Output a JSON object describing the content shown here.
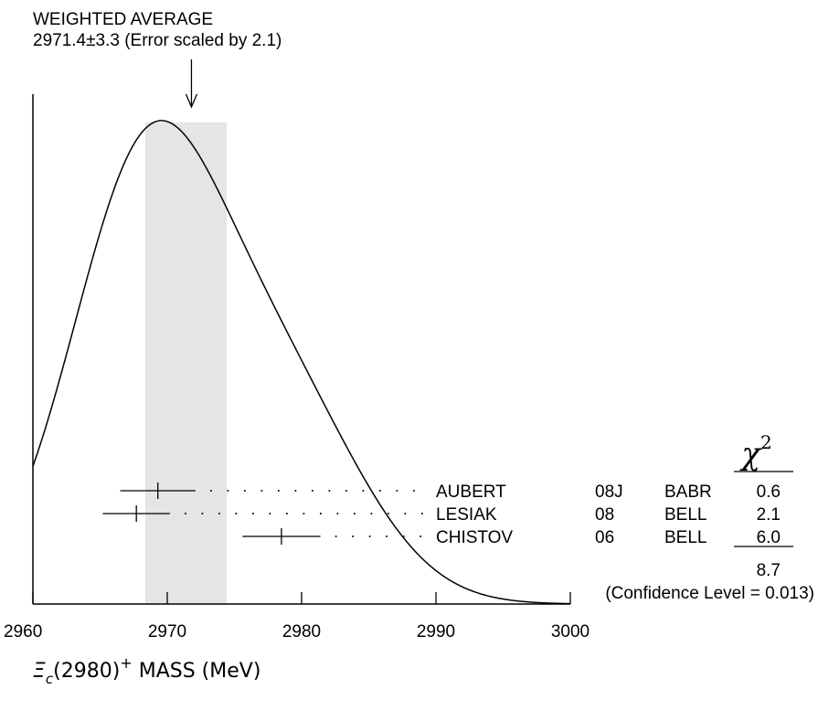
{
  "chart_data": {
    "type": "ideogram",
    "title": "WEIGHTED AVERAGE",
    "subtitle": "2971.4±3.3 (Error scaled by 2.1)",
    "xlabel": {
      "symbol": "Ξ",
      "subscript": "c",
      "mid": "(2980)",
      "superscript": "+",
      "rest": " MASS (MeV)"
    },
    "xlim": [
      2960,
      3000
    ],
    "ticks": [
      2960,
      2970,
      2980,
      2990,
      3000
    ],
    "weighted_average": {
      "value": 2971.4,
      "error": 3.3,
      "scale_factor": 2.1
    },
    "chi2_header": "χ",
    "chi2_header_sup": "2",
    "measurements": [
      {
        "author": "AUBERT",
        "year": "08J",
        "experiment": "BABR",
        "value": 2969.3,
        "error": 2.8,
        "chi2": "0.6"
      },
      {
        "author": "LESIAK",
        "year": "08",
        "experiment": "BELL",
        "value": 2967.7,
        "error": 2.5,
        "chi2": "2.1"
      },
      {
        "author": "CHISTOV",
        "year": "06",
        "experiment": "BELL",
        "value": 2978.5,
        "error": 2.9,
        "chi2": "6.0"
      }
    ],
    "chi2_total": "8.7",
    "confidence_level": "(Confidence Level = 0.013)"
  }
}
